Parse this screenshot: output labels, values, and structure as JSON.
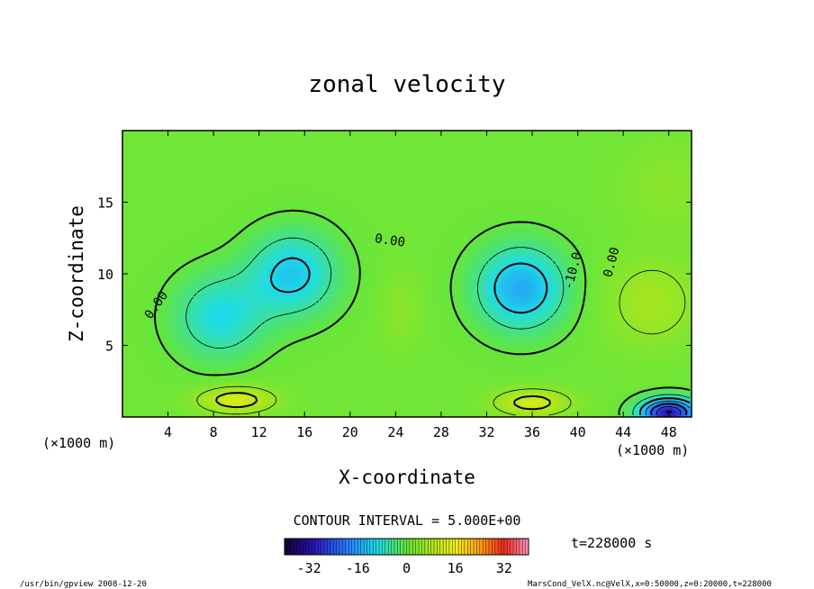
{
  "chart_data": {
    "type": "heatmap",
    "title": "zonal velocity",
    "xlabel": "X-coordinate",
    "ylabel": "Z-coordinate",
    "x_unit_left": "(×1000 m)",
    "x_unit_right": "(×1000 m)",
    "z_unit_left": "(×1000 m)",
    "xlim": [
      0,
      50
    ],
    "ylim": [
      0,
      20
    ],
    "x_ticks": [
      4,
      8,
      12,
      16,
      20,
      24,
      28,
      32,
      36,
      40,
      44,
      48
    ],
    "y_ticks": [
      5,
      10,
      15
    ],
    "contour_interval_text": "CONTOUR INTERVAL = 5.000E+00",
    "contour_labels": [
      {
        "text": "0.00",
        "x": 3.0,
        "y": 7.8,
        "angle": -55
      },
      {
        "text": "0.00",
        "x": 23.5,
        "y": 12.3,
        "angle": 8
      },
      {
        "text": "-10.0",
        "x": 39.6,
        "y": 10.2,
        "angle": -75
      },
      {
        "text": "0.00",
        "x": 43.0,
        "y": 10.8,
        "angle": -75
      }
    ],
    "features": [
      {
        "type": "negative",
        "x": 8.5,
        "z": 7.0,
        "amplitude": -11,
        "note": "left lower cell"
      },
      {
        "type": "negative",
        "x": 15.0,
        "z": 10.0,
        "amplitude": -13,
        "note": "left upper cell"
      },
      {
        "type": "negative",
        "x": 35.0,
        "z": 9.0,
        "amplitude": -16,
        "note": "right cell"
      },
      {
        "type": "positive",
        "x": 10.0,
        "z": 1.2,
        "amplitude": 12,
        "note": "left surface jet"
      },
      {
        "type": "positive",
        "x": 36.0,
        "z": 1.0,
        "amplitude": 11,
        "note": "right surface jet"
      },
      {
        "type": "negative",
        "x": 48.0,
        "z": 0.3,
        "amplitude": -32,
        "note": "right corner low"
      },
      {
        "type": "positive",
        "x": 46.5,
        "z": 8.0,
        "amplitude": 6,
        "note": "right side positive"
      }
    ],
    "colorbar": {
      "min": -40,
      "max": 40,
      "ticks": [
        -32,
        -16,
        0,
        16,
        32
      ]
    },
    "time_label": "t=228000 s"
  },
  "footer": {
    "left": "/usr/bin/gpview  2008-12-20",
    "right": "MarsCond_VelX.nc@VelX,x=0:50000,z=0:20000,t=228000"
  }
}
